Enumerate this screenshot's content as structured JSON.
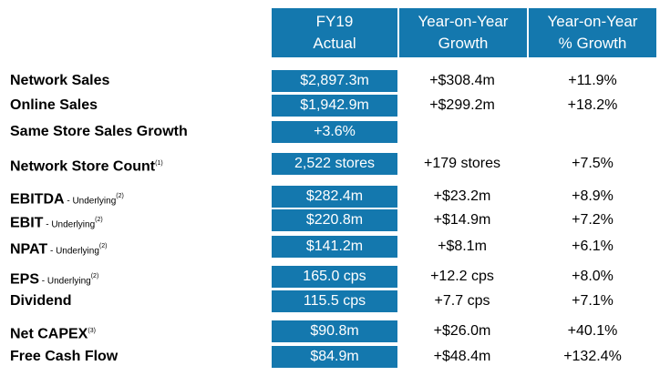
{
  "header": {
    "col1": [
      "FY19",
      "Actual"
    ],
    "col2": [
      "Year-on-Year",
      "Growth"
    ],
    "col3": [
      "Year-on-Year",
      "% Growth"
    ]
  },
  "rows": [
    {
      "label": "Network Sales",
      "sub": "",
      "sup": "",
      "actual": "$2,897.3m",
      "growth": "+$308.4m",
      "pct": "+11.9%"
    },
    {
      "label": "Online Sales",
      "sub": "",
      "sup": "",
      "actual": "$1,942.9m",
      "growth": "+$299.2m",
      "pct": "+18.2%"
    },
    {
      "label": "Same Store Sales Growth",
      "sub": "",
      "sup": "",
      "actual": "+3.6%",
      "growth": "",
      "pct": ""
    },
    {
      "label": "Network Store Count",
      "sub": "",
      "sup": "(1)",
      "actual": "2,522 stores",
      "growth": "+179 stores",
      "pct": "+7.5%"
    },
    {
      "label": "EBITDA",
      "sub": " - Underlying",
      "sup": "(2)",
      "actual": "$282.4m",
      "growth": "+$23.2m",
      "pct": "+8.9%"
    },
    {
      "label": "EBIT",
      "sub": " - Underlying",
      "sup": "(2)",
      "actual": "$220.8m",
      "growth": "+$14.9m",
      "pct": "+7.2%"
    },
    {
      "label": "NPAT",
      "sub": " - Underlying",
      "sup": "(2)",
      "actual": "$141.2m",
      "growth": "+$8.1m",
      "pct": "+6.1%"
    },
    {
      "label": "EPS",
      "sub": " - Underlying",
      "sup": "(2)",
      "actual": "165.0 cps",
      "growth": "+12.2 cps",
      "pct": "+8.0%"
    },
    {
      "label": "Dividend",
      "sub": "",
      "sup": "",
      "actual": "115.5 cps",
      "growth": "+7.7 cps",
      "pct": "+7.1%"
    },
    {
      "label": "Net CAPEX",
      "sub": "",
      "sup": "(3)",
      "actual": "$90.8m",
      "growth": "+$26.0m",
      "pct": "+40.1%"
    },
    {
      "label": "Free Cash Flow",
      "sub": "",
      "sup": "",
      "actual": "$84.9m",
      "growth": "+$48.4m",
      "pct": "+132.4%"
    }
  ]
}
